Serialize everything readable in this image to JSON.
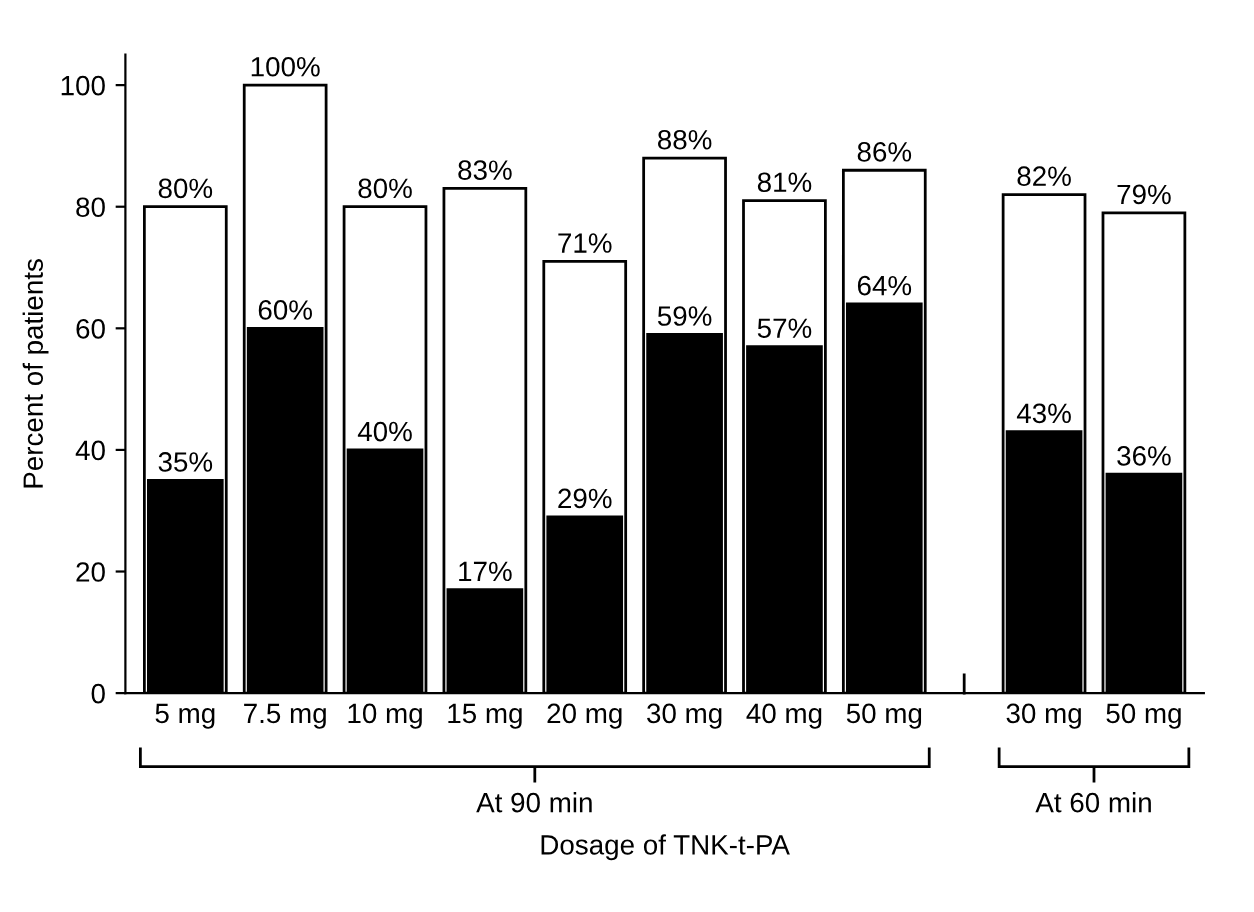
{
  "chart_data": {
    "type": "bar",
    "xlabel": "Dosage of TNK-t-PA",
    "ylabel": "Percent of patients",
    "categories": [
      "5 mg",
      "7.5 mg",
      "10 mg",
      "15 mg",
      "20 mg",
      "30 mg",
      "40 mg",
      "50 mg",
      "30 mg",
      "50 mg"
    ],
    "series": [
      {
        "color": "#ffffff",
        "values": [
          80,
          100,
          80,
          83,
          71,
          88,
          81,
          86,
          82,
          79
        ],
        "value_labels": [
          "80%",
          "100%",
          "80%",
          "83%",
          "71%",
          "88%",
          "81%",
          "86%",
          "82%",
          "79%"
        ]
      },
      {
        "color": "#000000",
        "values": [
          35,
          60,
          40,
          17,
          29,
          59,
          57,
          64,
          43,
          36
        ],
        "value_labels": [
          "35%",
          "60%",
          "40%",
          "17%",
          "29%",
          "59%",
          "57%",
          "64%",
          "43%",
          "36%"
        ]
      }
    ],
    "annotations": [
      "At 90 min",
      "At 60 min"
    ],
    "ylim": [
      0,
      105
    ],
    "yticks": [
      0,
      20,
      40,
      60,
      80,
      100
    ],
    "grid": false
  }
}
